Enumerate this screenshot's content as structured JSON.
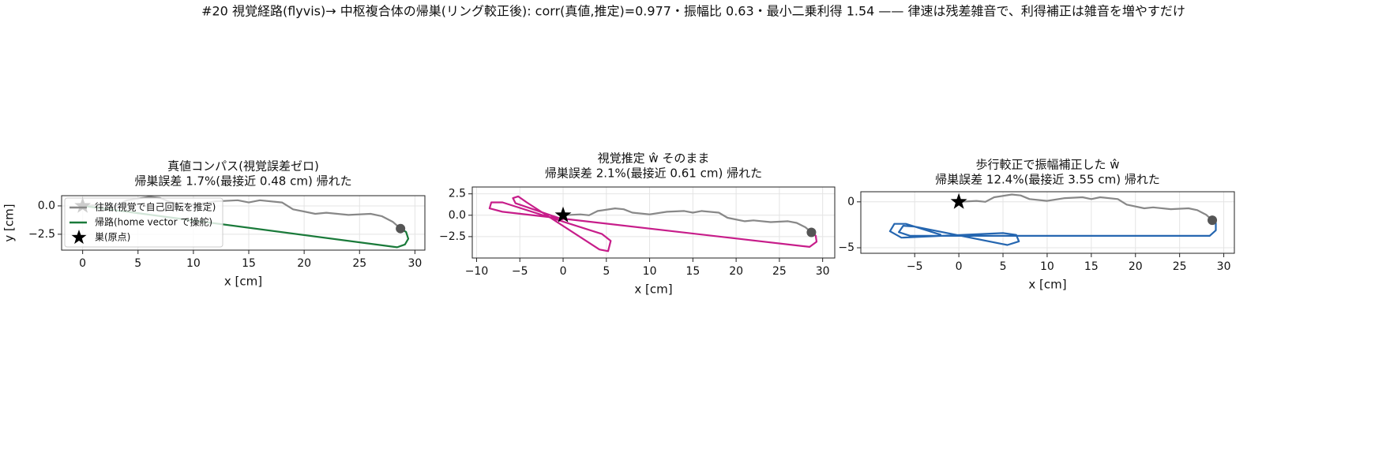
{
  "title": "#20 視覚経路(flyvis)→ 中枢複合体の帰巣(リング較正後): corr(真値,推定)=0.977・振幅比 0.63・最小二乗利得 1.54 —— 律速は残差雑音で、利得補正は雑音を増やすだけ",
  "chart_data": [
    {
      "type": "line",
      "title": [
        "真値コンパス(視覚誤差ゼロ)",
        "帰巣誤差 1.7%(最接近 0.48 cm) 帰れた"
      ],
      "xlabel": "x [cm]",
      "ylabel": "y [cm]",
      "xlim": [
        -1.9,
        30.9
      ],
      "ylim": [
        -3.9,
        0.9
      ],
      "xticks": [
        0,
        5,
        10,
        15,
        20,
        25,
        30
      ],
      "yticks": [
        {
          "value": 0,
          "label": "0.0"
        },
        {
          "value": -2.5,
          "label": "−2.5"
        }
      ],
      "grid": true,
      "legend": "upper left",
      "series": [
        {
          "name": "往路(視覚で自己回転を推定)",
          "color": "#888888",
          "x": [
            0,
            2,
            3,
            4,
            6,
            7,
            8,
            10,
            12,
            14,
            15,
            16,
            18,
            19,
            21,
            22,
            24,
            26,
            27,
            28,
            28.7
          ],
          "y": [
            0,
            0.1,
            0,
            0.5,
            0.8,
            0.7,
            0.3,
            0.1,
            0.4,
            0.5,
            0.3,
            0.5,
            0.3,
            -0.3,
            -0.7,
            -0.6,
            -0.8,
            -0.7,
            -0.9,
            -1.4,
            -2.0
          ]
        },
        {
          "name": "帰路(home vector で操舵)",
          "color": "#1a7a3a",
          "x": [
            28.7,
            29.2,
            29.4,
            29.1,
            28.4,
            0
          ],
          "y": [
            -2.0,
            -2.3,
            -2.9,
            -3.4,
            -3.65,
            0
          ]
        }
      ],
      "nest": {
        "name": "巣(原点)",
        "x": [
          0
        ],
        "y": [
          0
        ]
      }
    },
    {
      "type": "line",
      "title": [
        "視覚推定 ŵ そのまま",
        "帰巣誤差 2.1%(最接近 0.61 cm) 帰れた"
      ],
      "xlabel": "x [cm]",
      "xlim": [
        -10.5,
        31.4
      ],
      "ylim": [
        -5.0,
        3.3
      ],
      "xticks": [
        {
          "value": -10,
          "label": "−10"
        },
        {
          "value": -5,
          "label": "−5"
        },
        0,
        5,
        10,
        15,
        20,
        25,
        30
      ],
      "yticks": [
        {
          "value": 2.5,
          "label": "2.5"
        },
        {
          "value": 0,
          "label": "0.0"
        },
        {
          "value": -2.5,
          "label": "−2.5"
        }
      ],
      "grid": true,
      "series": [
        {
          "color": "#888888",
          "x": [
            0,
            2,
            3,
            4,
            6,
            7,
            8,
            10,
            12,
            14,
            15,
            16,
            18,
            19,
            21,
            22,
            24,
            26,
            27,
            28,
            28.7
          ],
          "y": [
            0,
            0.1,
            0,
            0.5,
            0.8,
            0.7,
            0.3,
            0.1,
            0.4,
            0.5,
            0.3,
            0.5,
            0.3,
            -0.3,
            -0.7,
            -0.6,
            -0.8,
            -0.7,
            -0.9,
            -1.4,
            -2.0
          ]
        },
        {
          "color": "#c71d8a",
          "x": [
            28.7,
            29.2,
            29.3,
            28.5,
            -7,
            -8.5,
            -8.3,
            -7,
            4.5,
            5.5,
            5.2,
            4.2,
            -4.2,
            -5.2,
            -5.8,
            -5.5,
            0
          ],
          "y": [
            -2.0,
            -2.4,
            -3.1,
            -3.7,
            0.4,
            0.8,
            1.5,
            1.5,
            -2.2,
            -3.0,
            -4.2,
            -4.0,
            1.5,
            2.2,
            2.0,
            1.4,
            -0.5
          ]
        }
      ],
      "nest": {
        "x": [
          0
        ],
        "y": [
          0
        ]
      }
    },
    {
      "type": "line",
      "title": [
        "歩行較正で振幅補正した ŵ",
        "帰巣誤差 12.4%(最接近 3.55 cm) 帰れた"
      ],
      "xlabel": "x [cm]",
      "xlim": [
        -11.1,
        31.2
      ],
      "ylim": [
        -5.6,
        1.1
      ],
      "xticks": [
        {
          "value": -5,
          "label": "−5"
        },
        0,
        5,
        10,
        15,
        20,
        25,
        30
      ],
      "yticks": [
        0,
        {
          "value": -5,
          "label": "−5"
        }
      ],
      "grid": true,
      "series": [
        {
          "color": "#888888",
          "x": [
            0,
            2,
            3,
            4,
            6,
            7,
            8,
            10,
            12,
            14,
            15,
            16,
            18,
            19,
            21,
            22,
            24,
            26,
            27,
            28,
            28.7
          ],
          "y": [
            0,
            0.1,
            0,
            0.5,
            0.8,
            0.7,
            0.3,
            0.1,
            0.4,
            0.5,
            0.3,
            0.5,
            0.3,
            -0.3,
            -0.7,
            -0.6,
            -0.8,
            -0.7,
            -0.9,
            -1.4,
            -2.0
          ]
        },
        {
          "color": "#2566b0",
          "x": [
            28.7,
            29.1,
            29.1,
            28.4,
            -5.5,
            -6.8,
            -6.3,
            -5,
            5.5,
            6.8,
            6.5,
            5,
            -6.5,
            -7.8,
            -7.3,
            -6,
            -2
          ],
          "y": [
            -2.0,
            -2.3,
            -3.1,
            -3.7,
            -3.7,
            -3.3,
            -2.6,
            -2.7,
            -4.7,
            -4.3,
            -3.6,
            -3.4,
            -3.9,
            -3.2,
            -2.4,
            -2.4,
            -3.6
          ]
        }
      ],
      "nest": {
        "x": [
          0
        ],
        "y": [
          0
        ]
      }
    }
  ]
}
